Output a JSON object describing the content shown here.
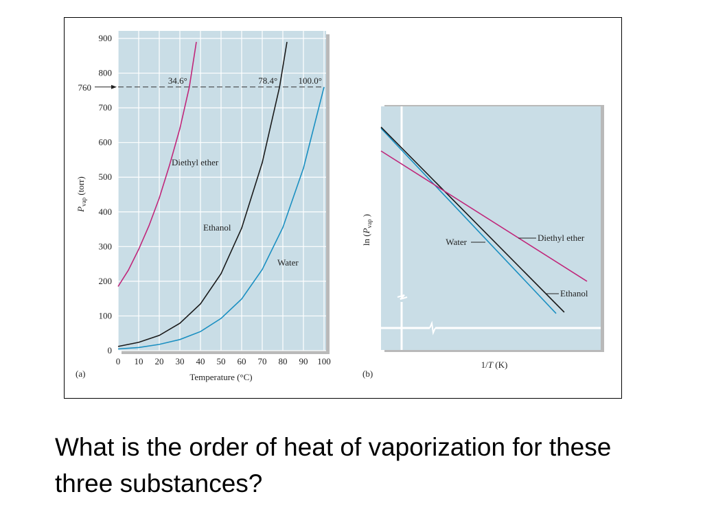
{
  "chart_data": [
    {
      "type": "line",
      "panel": "(a)",
      "xlabel": "Temperature (°C)",
      "ylabel": [
        "P",
        "vap",
        " (torr)"
      ],
      "xlim": [
        0,
        100
      ],
      "ylim": [
        0,
        900
      ],
      "xticks": [
        0,
        10,
        20,
        30,
        40,
        50,
        60,
        70,
        80,
        90,
        100
      ],
      "yticks": [
        0,
        100,
        200,
        300,
        400,
        500,
        600,
        700,
        800,
        900
      ],
      "grid": true,
      "reference_line": 760,
      "annotations": [
        {
          "text": "34.6°",
          "x": 34.6
        },
        {
          "text": "78.4°",
          "x": 78.4
        },
        {
          "text": "100.0°",
          "x": 100
        }
      ],
      "series": [
        {
          "name": "Diethyl ether",
          "color": "#c0267a",
          "x": [
            0,
            5,
            10,
            15,
            20,
            25,
            30,
            34.6,
            38
          ],
          "values": [
            185,
            232,
            292,
            360,
            440,
            535,
            640,
            760,
            890
          ]
        },
        {
          "name": "Ethanol",
          "color": "#1a1a1a",
          "x": [
            0,
            10,
            20,
            30,
            40,
            50,
            60,
            70,
            78.4,
            82
          ],
          "values": [
            12,
            24,
            44,
            79,
            135,
            222,
            353,
            542,
            760,
            890
          ]
        },
        {
          "name": "Water",
          "color": "#1a8fc1",
          "x": [
            0,
            10,
            20,
            30,
            40,
            50,
            60,
            70,
            80,
            90,
            100
          ],
          "values": [
            5,
            9,
            18,
            32,
            55,
            93,
            149,
            234,
            355,
            526,
            760
          ]
        }
      ]
    },
    {
      "type": "line",
      "panel": "(b)",
      "xlabel": [
        "1/",
        "T",
        " (K)"
      ],
      "ylabel": [
        "ln (",
        "P",
        "vap",
        " )"
      ],
      "xlim": [
        0,
        100
      ],
      "ylim": [
        0,
        100
      ],
      "series": [
        {
          "name": "Water",
          "color": "#1a8fc1",
          "x": [
            0,
            79.7
          ],
          "values": [
            91,
            15
          ]
        },
        {
          "name": "Ethanol",
          "color": "#1a1a1a",
          "x": [
            0,
            83.4
          ],
          "values": [
            91.5,
            15.5
          ]
        },
        {
          "name": "Diethyl ether",
          "color": "#c0267a",
          "x": [
            0,
            93.75
          ],
          "values": [
            81.7,
            28.2
          ]
        }
      ]
    }
  ],
  "question": "What is the order of heat of vaporization for these three substances?"
}
